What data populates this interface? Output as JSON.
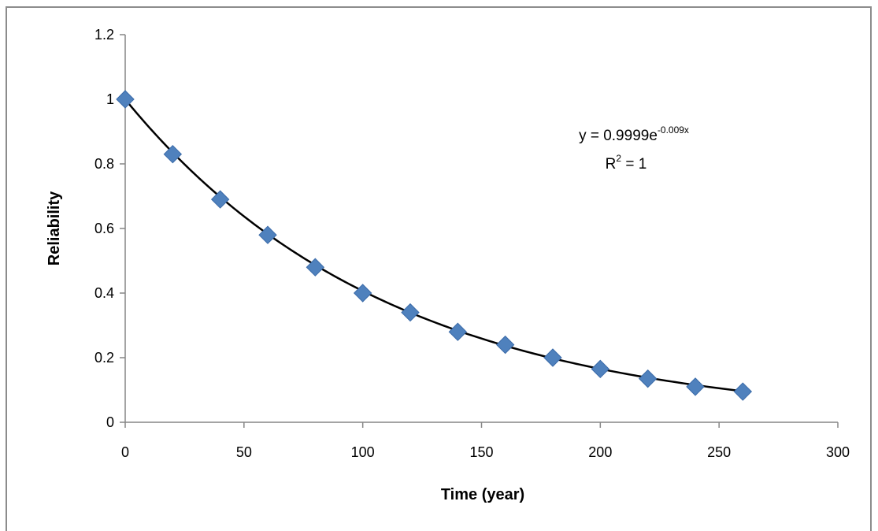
{
  "chart_data": {
    "type": "scatter",
    "title": "",
    "xlabel": "Time (year)",
    "ylabel": "Reliability",
    "xlim": [
      0,
      300
    ],
    "ylim": [
      0,
      1.2
    ],
    "xticks": [
      0,
      50,
      100,
      150,
      200,
      250,
      300
    ],
    "yticks": [
      0,
      0.2,
      0.4,
      0.6,
      0.8,
      1,
      1.2
    ],
    "xtick_labels": [
      "0",
      "50",
      "100",
      "150",
      "200",
      "250",
      "300"
    ],
    "ytick_labels": [
      "0",
      "0.2",
      "0.4",
      "0.6",
      "0.8",
      "1",
      "1.2"
    ],
    "grid": false,
    "legend": "none",
    "marker_color": "#4f81bd",
    "series": [
      {
        "x": [
          0,
          20,
          40,
          60,
          80,
          100,
          120,
          140,
          160,
          180,
          200,
          220,
          240,
          260
        ],
        "y": [
          1.0,
          0.83,
          0.69,
          0.58,
          0.48,
          0.4,
          0.34,
          0.28,
          0.24,
          0.2,
          0.165,
          0.135,
          0.11,
          0.095
        ]
      }
    ],
    "trendline": {
      "type": "exponential",
      "a": 0.9999,
      "b": -0.009,
      "color": "#000000"
    },
    "annotation": {
      "equation_prefix": "y = 0.9999e",
      "equation_exponent": "-0.009x",
      "r2_prefix": "R",
      "r2_sup": "2",
      "r2_suffix": " = 1"
    }
  }
}
